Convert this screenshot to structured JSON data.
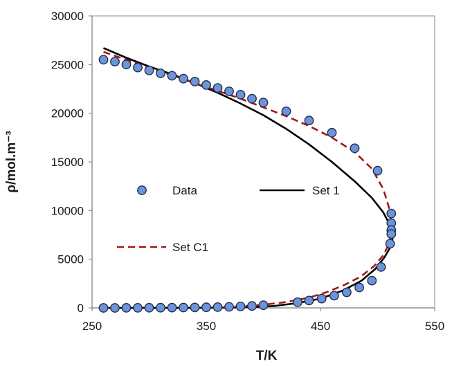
{
  "chart_data": {
    "type": "scatter",
    "title": "",
    "xlabel": "T/K",
    "ylabel": "ρ/mol.m⁻³",
    "xlim": [
      250,
      550
    ],
    "ylim": [
      0,
      30000
    ],
    "x_ticks": [
      "250",
      "350",
      "450",
      "550"
    ],
    "y_ticks": [
      "0",
      "5000",
      "10000",
      "15000",
      "20000",
      "25000",
      "30000"
    ],
    "grid": false,
    "series": [
      {
        "name": "Data",
        "kind": "markers",
        "color": "#6f93d8",
        "edge_color": "#1f2f4f",
        "points": [
          [
            260,
            25500
          ],
          [
            270,
            25300
          ],
          [
            280,
            25000
          ],
          [
            290,
            24700
          ],
          [
            300,
            24400
          ],
          [
            310,
            24100
          ],
          [
            320,
            23850
          ],
          [
            330,
            23550
          ],
          [
            340,
            23250
          ],
          [
            350,
            22900
          ],
          [
            360,
            22600
          ],
          [
            370,
            22250
          ],
          [
            380,
            21900
          ],
          [
            390,
            21500
          ],
          [
            400,
            21100
          ],
          [
            420,
            20200
          ],
          [
            440,
            19250
          ],
          [
            460,
            18000
          ],
          [
            480,
            16400
          ],
          [
            500,
            14100
          ],
          [
            512,
            9700
          ],
          [
            512,
            8700
          ],
          [
            512,
            8000
          ],
          [
            512,
            7600
          ],
          [
            511,
            6600
          ],
          [
            503,
            4200
          ],
          [
            495,
            2800
          ],
          [
            484,
            2100
          ],
          [
            473,
            1600
          ],
          [
            462,
            1250
          ],
          [
            451,
            950
          ],
          [
            440,
            750
          ],
          [
            430,
            580
          ],
          [
            400,
            280
          ],
          [
            390,
            200
          ],
          [
            380,
            150
          ],
          [
            370,
            110
          ],
          [
            360,
            80
          ],
          [
            350,
            60
          ],
          [
            340,
            45
          ],
          [
            330,
            35
          ],
          [
            320,
            25
          ],
          [
            310,
            18
          ],
          [
            300,
            12
          ],
          [
            290,
            8
          ],
          [
            280,
            5
          ],
          [
            270,
            3
          ],
          [
            260,
            2
          ]
        ]
      },
      {
        "name": "Set 1",
        "kind": "solid",
        "color": "#000000",
        "points": [
          [
            260,
            26700
          ],
          [
            280,
            25700
          ],
          [
            300,
            24800
          ],
          [
            320,
            24000
          ],
          [
            340,
            23100
          ],
          [
            360,
            22100
          ],
          [
            380,
            21000
          ],
          [
            400,
            19800
          ],
          [
            420,
            18400
          ],
          [
            440,
            16800
          ],
          [
            460,
            15000
          ],
          [
            480,
            13000
          ],
          [
            495,
            11300
          ],
          [
            505,
            9800
          ],
          [
            510,
            8700
          ],
          [
            513,
            7800
          ],
          [
            513,
            7000
          ],
          [
            511,
            6200
          ],
          [
            506,
            5200
          ],
          [
            498,
            4000
          ],
          [
            486,
            2800
          ],
          [
            470,
            1800
          ],
          [
            450,
            950
          ],
          [
            430,
            500
          ],
          [
            410,
            200
          ],
          [
            390,
            80
          ],
          [
            370,
            30
          ],
          [
            350,
            15
          ],
          [
            330,
            8
          ],
          [
            300,
            4
          ],
          [
            260,
            1
          ]
        ]
      },
      {
        "name": "Set C1",
        "kind": "dashed",
        "color": "#a01818",
        "points": [
          [
            260,
            26300
          ],
          [
            280,
            25500
          ],
          [
            300,
            24700
          ],
          [
            320,
            23900
          ],
          [
            340,
            23100
          ],
          [
            360,
            22300
          ],
          [
            380,
            21500
          ],
          [
            400,
            20600
          ],
          [
            420,
            19700
          ],
          [
            440,
            18700
          ],
          [
            460,
            17500
          ],
          [
            480,
            16000
          ],
          [
            495,
            14300
          ],
          [
            505,
            12200
          ],
          [
            510,
            10300
          ],
          [
            512,
            8700
          ],
          [
            512,
            7600
          ],
          [
            510,
            6600
          ],
          [
            505,
            5400
          ],
          [
            497,
            4300
          ],
          [
            485,
            3200
          ],
          [
            470,
            2300
          ],
          [
            455,
            1600
          ],
          [
            440,
            1050
          ],
          [
            420,
            600
          ],
          [
            400,
            320
          ],
          [
            380,
            150
          ],
          [
            360,
            60
          ],
          [
            340,
            20
          ],
          [
            300,
            5
          ],
          [
            260,
            2
          ]
        ]
      }
    ],
    "legend_entries": [
      "Data",
      "Set 1",
      "Set C1"
    ],
    "legend_placement": "inside-left-center"
  }
}
